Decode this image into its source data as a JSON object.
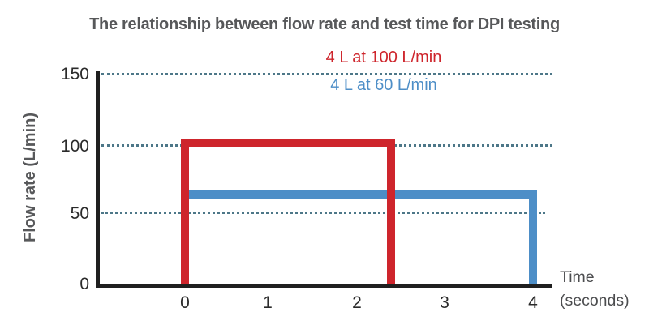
{
  "title": "The relationship between flow rate and test time for DPI testing",
  "legend": {
    "items": [
      {
        "label": "4 L at 100 L/min",
        "color": "#ce252c"
      },
      {
        "label": "4 L at 60 L/min",
        "color": "#4d8ec7"
      }
    ]
  },
  "axes": {
    "ylabel": "Flow rate (L/min)",
    "xlabel_lines": [
      "Time",
      "(seconds)"
    ],
    "y_ticks": [
      "150",
      "100",
      "50",
      "0"
    ],
    "x_ticks": [
      "0",
      "1",
      "2",
      "3",
      "4"
    ]
  },
  "colors": {
    "series_red": "#ce252c",
    "series_blue": "#4d8ec7",
    "gridline": "#4d7788",
    "axis_line": "#1f1f1f",
    "title_text": "#57585a",
    "tick_text": "#2b2b2b"
  },
  "chart_data": {
    "type": "line",
    "subtype": "square-pulse (step)",
    "title": "The relationship between flow rate and test time for DPI testing",
    "xlabel": "Time (seconds)",
    "ylabel": "Flow rate (L/min)",
    "xlim": [
      0,
      4.35
    ],
    "ylim": [
      0,
      155
    ],
    "x_ticks": [
      0,
      1,
      2,
      3,
      4
    ],
    "y_ticks": [
      0,
      50,
      100,
      150
    ],
    "gridlines_y": [
      50,
      100,
      150
    ],
    "grid_style": "dotted",
    "legend_position": "top-center",
    "series": [
      {
        "name": "4 L at 100 L/min",
        "color": "#ce252c",
        "x": [
          0,
          0,
          2.4,
          2.4
        ],
        "y": [
          0,
          100,
          100,
          0
        ]
      },
      {
        "name": "4 L at 60 L/min",
        "color": "#4d8ec7",
        "x": [
          0,
          0,
          4,
          4
        ],
        "y": [
          0,
          60,
          60,
          0
        ]
      }
    ]
  }
}
